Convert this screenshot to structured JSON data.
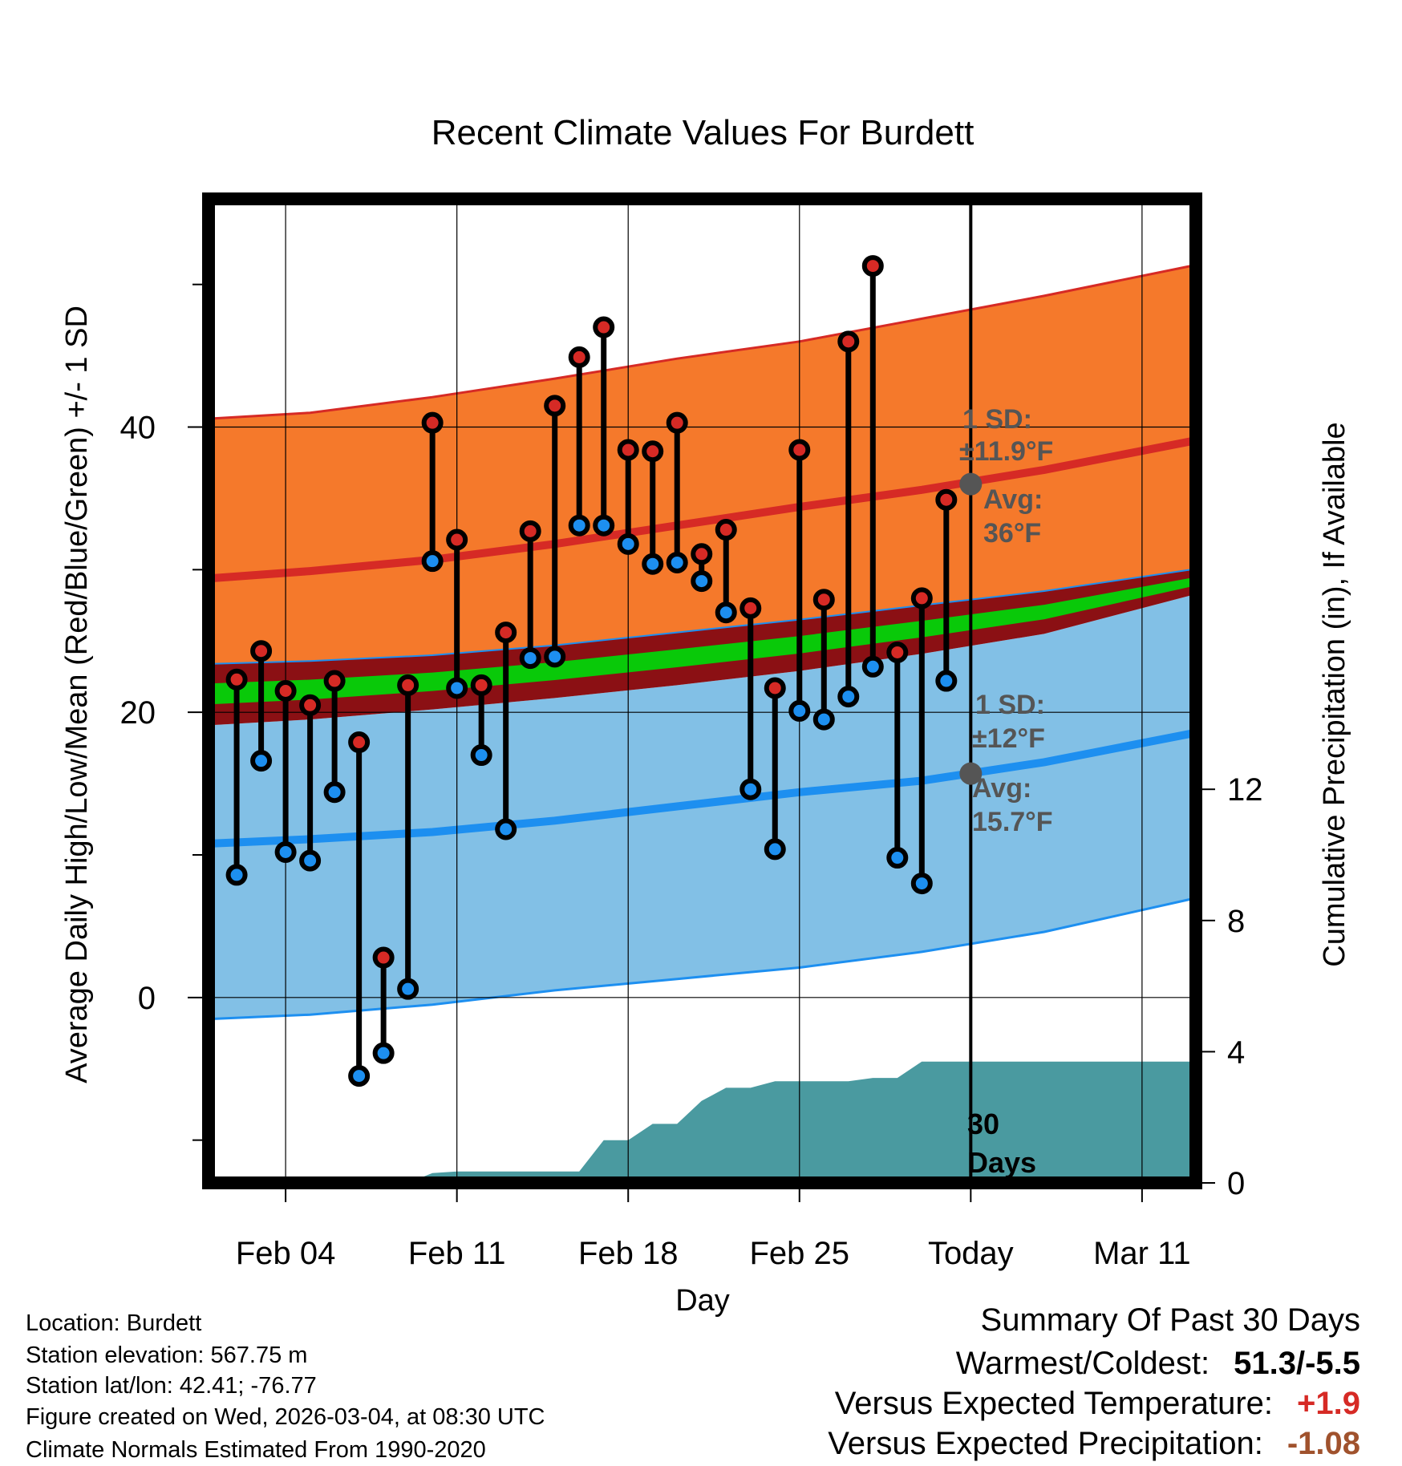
{
  "chart_data": {
    "type": "line",
    "title": "Recent Climate Values For Burdett",
    "xlabel": "Day",
    "ylabel": "Average Daily High/Low/Mean (Red/Blue/Green) +/- 1 SD",
    "y2label": "Cumulative Precipitation (in), If Available",
    "x_tick_labels": [
      "Feb 04",
      "Feb 11",
      "Feb 18",
      "Feb 25",
      "Today",
      "Mar 11"
    ],
    "x_tick_days": [
      4,
      11,
      18,
      25,
      32,
      39
    ],
    "x_range": [
      0.85,
      41.2
    ],
    "today_day": 32,
    "ylim": [
      -13,
      56
    ],
    "yticks": [
      0,
      20,
      40
    ],
    "y_minor_ticks": [
      -10,
      10,
      30,
      50
    ],
    "y2lim": [
      0,
      30
    ],
    "y2ticks": [
      0,
      4,
      8,
      12
    ],
    "normals": {
      "days": [
        1,
        5,
        10,
        15,
        20,
        25,
        30,
        35,
        41
      ],
      "high_avg": [
        29.4,
        29.9,
        30.7,
        31.8,
        33.1,
        34.4,
        35.6,
        37.0,
        39.0
      ],
      "high_upper": [
        40.6,
        41.0,
        42.1,
        43.4,
        44.8,
        46.0,
        47.6,
        49.2,
        51.3
      ],
      "low_avg": [
        10.8,
        11.1,
        11.6,
        12.4,
        13.4,
        14.4,
        15.2,
        16.5,
        18.5
      ],
      "low_lower": [
        -1.5,
        -1.2,
        -0.5,
        0.5,
        1.3,
        2.1,
        3.2,
        4.6,
        6.9
      ],
      "mean_upper": [
        23.4,
        23.6,
        24.0,
        24.7,
        25.6,
        26.5,
        27.5,
        28.5,
        30.0
      ],
      "mean_lower": [
        19.1,
        19.5,
        20.2,
        21.0,
        21.9,
        22.9,
        24.1,
        25.5,
        28.2
      ]
    },
    "annotations": {
      "high_sd_line1": "1 SD:",
      "high_sd_line2": "±11.9°F",
      "high_avg_line1": "Avg:",
      "high_avg_line2": "36°F",
      "low_sd_line1": "1 SD:",
      "low_sd_line2": "±12°F",
      "low_avg_line1": "Avg:",
      "low_avg_line2": "15.7°F",
      "precip_line1": "30",
      "precip_line2": "Days",
      "today_high_avg": 36,
      "today_low_avg": 15.7
    },
    "daily": {
      "days": [
        2,
        3,
        4,
        5,
        6,
        7,
        8,
        9,
        10,
        11,
        12,
        13,
        14,
        15,
        16,
        17,
        18,
        19,
        20,
        21,
        22,
        23,
        24,
        25,
        26,
        27,
        28,
        29,
        30,
        31
      ],
      "highs": [
        22.3,
        24.3,
        21.5,
        20.5,
        22.2,
        17.9,
        2.8,
        21.9,
        40.3,
        32.1,
        21.9,
        25.6,
        32.7,
        41.5,
        44.9,
        47.0,
        38.4,
        38.3,
        40.3,
        31.1,
        32.8,
        27.3,
        21.7,
        38.4,
        27.9,
        46.0,
        51.3,
        24.2,
        28.0,
        34.9
      ],
      "lows": [
        8.6,
        16.6,
        10.2,
        9.6,
        14.4,
        -5.5,
        -3.9,
        0.6,
        30.6,
        21.7,
        17.0,
        11.8,
        23.8,
        23.9,
        33.1,
        33.1,
        31.8,
        30.4,
        30.5,
        29.2,
        27.0,
        14.6,
        10.4,
        20.1,
        19.5,
        21.1,
        23.2,
        9.8,
        8.0,
        22.2
      ]
    },
    "precip": {
      "days": [
        1,
        9,
        10,
        11,
        14,
        16,
        17,
        18,
        19,
        20,
        21,
        22,
        23,
        24,
        25,
        26,
        27,
        28,
        29,
        30,
        31,
        32,
        41.2
      ],
      "values": [
        0,
        0,
        0.3,
        0.35,
        0.35,
        0.35,
        1.3,
        1.3,
        1.8,
        1.8,
        2.5,
        2.9,
        2.9,
        3.1,
        3.1,
        3.1,
        3.1,
        3.2,
        3.2,
        3.7,
        3.7,
        3.7,
        3.7
      ]
    }
  },
  "colors": {
    "high_band": "#f5792b",
    "high_line": "#d62a25",
    "low_band": "#82c0e6",
    "low_line": "#1d8ff0",
    "mean_band": "#8b1014",
    "mean_fill": "#09c909",
    "precip": "#4a9aa0",
    "marker_high": "#d62a25",
    "marker_low": "#1d8ff0",
    "anno_gray": "#555555",
    "positive": "#d62a25",
    "precip_anomaly": "#a0522d"
  },
  "info": {
    "location": "Location: Burdett",
    "elevation": "Station elevation: 567.75 m",
    "latlon": "Station lat/lon: 42.41; -76.77",
    "created": "Figure created on Wed, 2026-03-04, at 08:30 UTC",
    "normals": "Climate Normals Estimated From 1990-2020"
  },
  "summary": {
    "title": "Summary Of Past 30 Days",
    "warm_cold_label": "Warmest/Coldest:",
    "warm_cold_value": "51.3/-5.5",
    "temp_label": "Versus Expected Temperature:",
    "temp_value": "+1.9",
    "precip_label": "Versus Expected Precipitation:",
    "precip_value": "-1.08"
  }
}
